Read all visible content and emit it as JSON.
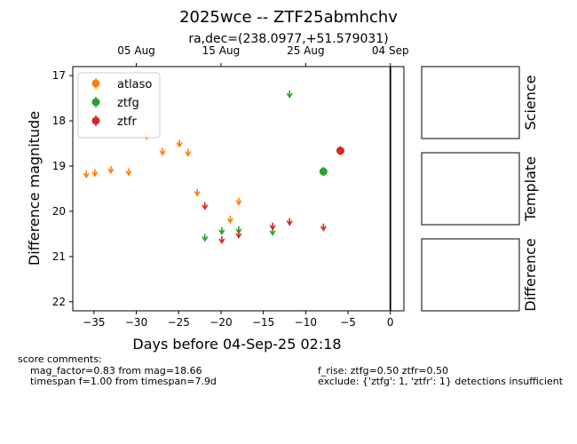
{
  "figure": {
    "title": "2025wce -- ZTF25abmhchv",
    "subtitle": "ra,dec=(238.0977,+51.579031)"
  },
  "chart_data": {
    "type": "scatter",
    "xlabel": "Days before 04-Sep-25 02:18",
    "ylabel": "Difference magnitude",
    "xlim": [
      -37.5,
      1.6
    ],
    "ylim": [
      22.2,
      16.8
    ],
    "y_inverted": true,
    "x_ticks": [
      -35,
      -30,
      -25,
      -20,
      -15,
      -10,
      -5,
      0
    ],
    "x_tick_labels": [
      "−35",
      "−30",
      "−25",
      "−20",
      "−15",
      "−10",
      "−5",
      "0"
    ],
    "y_ticks": [
      17,
      18,
      19,
      20,
      21,
      22
    ],
    "y_tick_labels": [
      "17",
      "18",
      "19",
      "20",
      "21",
      "22"
    ],
    "top_axis": {
      "ticks": [
        -30,
        -20,
        -10,
        0
      ],
      "labels": [
        "05 Aug",
        "15 Aug",
        "25 Aug",
        "04 Sep"
      ]
    },
    "reference_line_x": 0,
    "legend": {
      "position": "top-left"
    },
    "series": [
      {
        "name": "atlaso",
        "color": "#ff7f0e",
        "detections": [],
        "upper_limits": [
          {
            "x": -35.9,
            "y": 19.15
          },
          {
            "x": -34.9,
            "y": 19.12
          },
          {
            "x": -33.0,
            "y": 19.05
          },
          {
            "x": -30.9,
            "y": 19.1
          },
          {
            "x": -28.8,
            "y": 18.3
          },
          {
            "x": -26.9,
            "y": 18.65
          },
          {
            "x": -24.9,
            "y": 18.47
          },
          {
            "x": -23.9,
            "y": 18.67
          },
          {
            "x": -22.8,
            "y": 19.55
          },
          {
            "x": -18.9,
            "y": 20.15
          },
          {
            "x": -17.9,
            "y": 19.75
          }
        ]
      },
      {
        "name": "ztfg",
        "color": "#2ca02c",
        "detections": [
          {
            "x": -7.9,
            "y": 19.12
          }
        ],
        "upper_limits": [
          {
            "x": -21.9,
            "y": 20.55
          },
          {
            "x": -19.9,
            "y": 20.4
          },
          {
            "x": -17.9,
            "y": 20.38
          },
          {
            "x": -13.9,
            "y": 20.42
          },
          {
            "x": -11.9,
            "y": 17.38
          }
        ]
      },
      {
        "name": "ztfr",
        "color": "#d62728",
        "detections": [
          {
            "x": -5.9,
            "y": 18.66
          }
        ],
        "upper_limits": [
          {
            "x": -21.9,
            "y": 19.85
          },
          {
            "x": -19.9,
            "y": 20.6
          },
          {
            "x": -17.9,
            "y": 20.48
          },
          {
            "x": -13.9,
            "y": 20.3
          },
          {
            "x": -11.9,
            "y": 20.2
          },
          {
            "x": -7.9,
            "y": 20.32
          }
        ]
      }
    ]
  },
  "stamps": [
    "Science",
    "Template",
    "Difference"
  ],
  "score": {
    "heading": "score comments:",
    "left": [
      "mag_factor=0.83 from mag=18.66",
      "timespan f=1.00 from timespan=7.9d"
    ],
    "right": [
      "f_rise: ztfg=0.50 ztfr=0.50",
      "exclude: {'ztfg': 1, 'ztfr': 1} detections insufficient"
    ]
  }
}
